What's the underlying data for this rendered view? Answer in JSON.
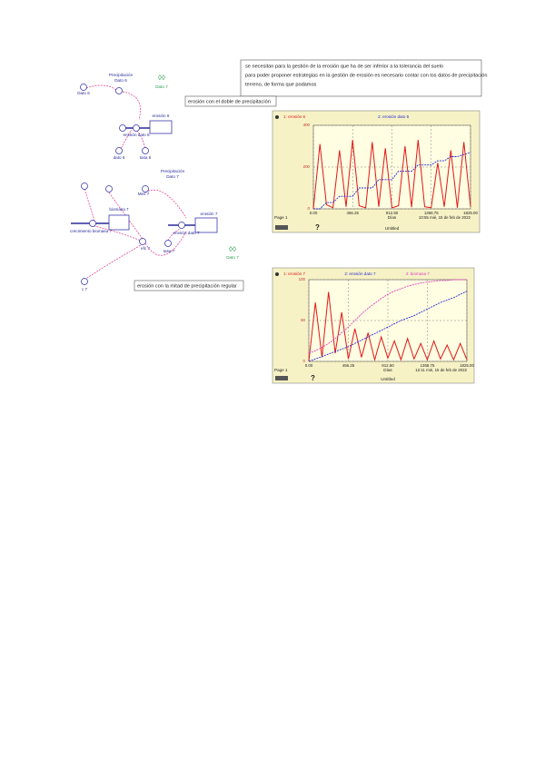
{
  "document": {
    "top_text": [
      "se necesitan para la gestión de la erosión que ha de ser inferior a la tolerancia del suelo",
      "para poder proponer estrategias en la gestión de erosión es necesario contar con los datos de precipitación",
      "terreno, de forma que podamos"
    ],
    "caption_1": "erosión con el doble de precipitación",
    "caption_2": "erosión con la mitad de precipitación regular",
    "diagram_1": [
      "Precipitación",
      "Dato 6",
      "Dato 6",
      "Dato 7",
      "erosión 6",
      "erosión dato 6",
      "dato 6",
      "tasa 6"
    ],
    "diagram_2": [
      "Precipitación",
      "Dato 7",
      "Mes 7",
      "biomasa 7",
      "crecimiento biomasa 7",
      "erosión 7",
      "erosión dato 7",
      "tasa 7",
      "efc 7",
      "Dato 7",
      "c 7"
    ]
  },
  "chart_data": [
    {
      "type": "line",
      "page": "Page 1",
      "x_label": "Días",
      "timestamp": "10:55  mié, 15 de feb de 2022",
      "footer": "Untitled",
      "help": "?",
      "x": [
        0,
        76,
        152,
        228,
        304,
        380,
        456,
        532,
        608,
        684,
        760,
        836,
        912,
        988,
        1064,
        1140,
        1216,
        1292,
        1368,
        1444,
        1520,
        1596,
        1672,
        1748,
        1825
      ],
      "xlim": [
        0,
        1825
      ],
      "xticks": [
        {
          "value": 0,
          "label": "0.00"
        },
        {
          "value": 456.25,
          "label": "456.25"
        },
        {
          "value": 912.5,
          "label": "912.50"
        },
        {
          "value": 1368.75,
          "label": "1368.75"
        },
        {
          "value": 1825,
          "label": "1825.00"
        }
      ],
      "ylim": [
        0,
        400
      ],
      "yticks": [
        0,
        200,
        400
      ],
      "series": [
        {
          "name": "1: erosión 6",
          "color": "#e01818",
          "values": [
            0,
            310,
            20,
            5,
            280,
            10,
            330,
            15,
            5,
            320,
            10,
            290,
            5,
            15,
            300,
            8,
            330,
            10,
            5,
            220,
            10,
            280,
            5,
            320,
            10
          ]
        },
        {
          "name": "2: erosión dato 6",
          "color": "#2a2ad0",
          "values": [
            0,
            0,
            30,
            30,
            60,
            60,
            60,
            100,
            100,
            100,
            140,
            140,
            140,
            180,
            180,
            180,
            210,
            210,
            210,
            230,
            230,
            250,
            250,
            260,
            270
          ]
        }
      ]
    },
    {
      "type": "line",
      "page": "Page 1",
      "x_label": "Días",
      "timestamp": "12:11  mié, 15 de feb de 2022",
      "footer": "Untitled",
      "help": "?",
      "x": [
        0,
        76,
        152,
        228,
        304,
        380,
        456,
        532,
        608,
        684,
        760,
        836,
        912,
        988,
        1064,
        1140,
        1216,
        1292,
        1368,
        1444,
        1520,
        1596,
        1672,
        1748,
        1825
      ],
      "xlim": [
        0,
        1825
      ],
      "xticks": [
        {
          "value": 0,
          "label": "0.00"
        },
        {
          "value": 456.25,
          "label": "456.25"
        },
        {
          "value": 912.5,
          "label": "912.50"
        },
        {
          "value": 1368.75,
          "label": "1368.75"
        },
        {
          "value": 1825,
          "label": "1825.00"
        }
      ],
      "ylim": [
        0,
        100
      ],
      "yticks": [
        0,
        50,
        100
      ],
      "series": [
        {
          "name": "1: erosión 7",
          "color": "#e01818",
          "values": [
            0,
            72,
            5,
            85,
            10,
            60,
            3,
            40,
            5,
            35,
            2,
            30,
            4,
            25,
            2,
            28,
            3,
            22,
            2,
            25,
            3,
            20,
            2,
            22,
            2
          ]
        },
        {
          "name": "2: erosión dato 7",
          "color": "#2a2ad0",
          "values": [
            0,
            3,
            6,
            9,
            12,
            15,
            18,
            22,
            26,
            30,
            34,
            38,
            42,
            46,
            50,
            53,
            56,
            60,
            64,
            68,
            72,
            75,
            78,
            82,
            86
          ]
        },
        {
          "name": "3: biomasa 7",
          "color": "#e040c0",
          "values": [
            10,
            13,
            17,
            22,
            28,
            35,
            42,
            50,
            58,
            65,
            71,
            77,
            82,
            86,
            89,
            92,
            94,
            96,
            97,
            98,
            99,
            99,
            100,
            100,
            100
          ]
        }
      ]
    }
  ]
}
